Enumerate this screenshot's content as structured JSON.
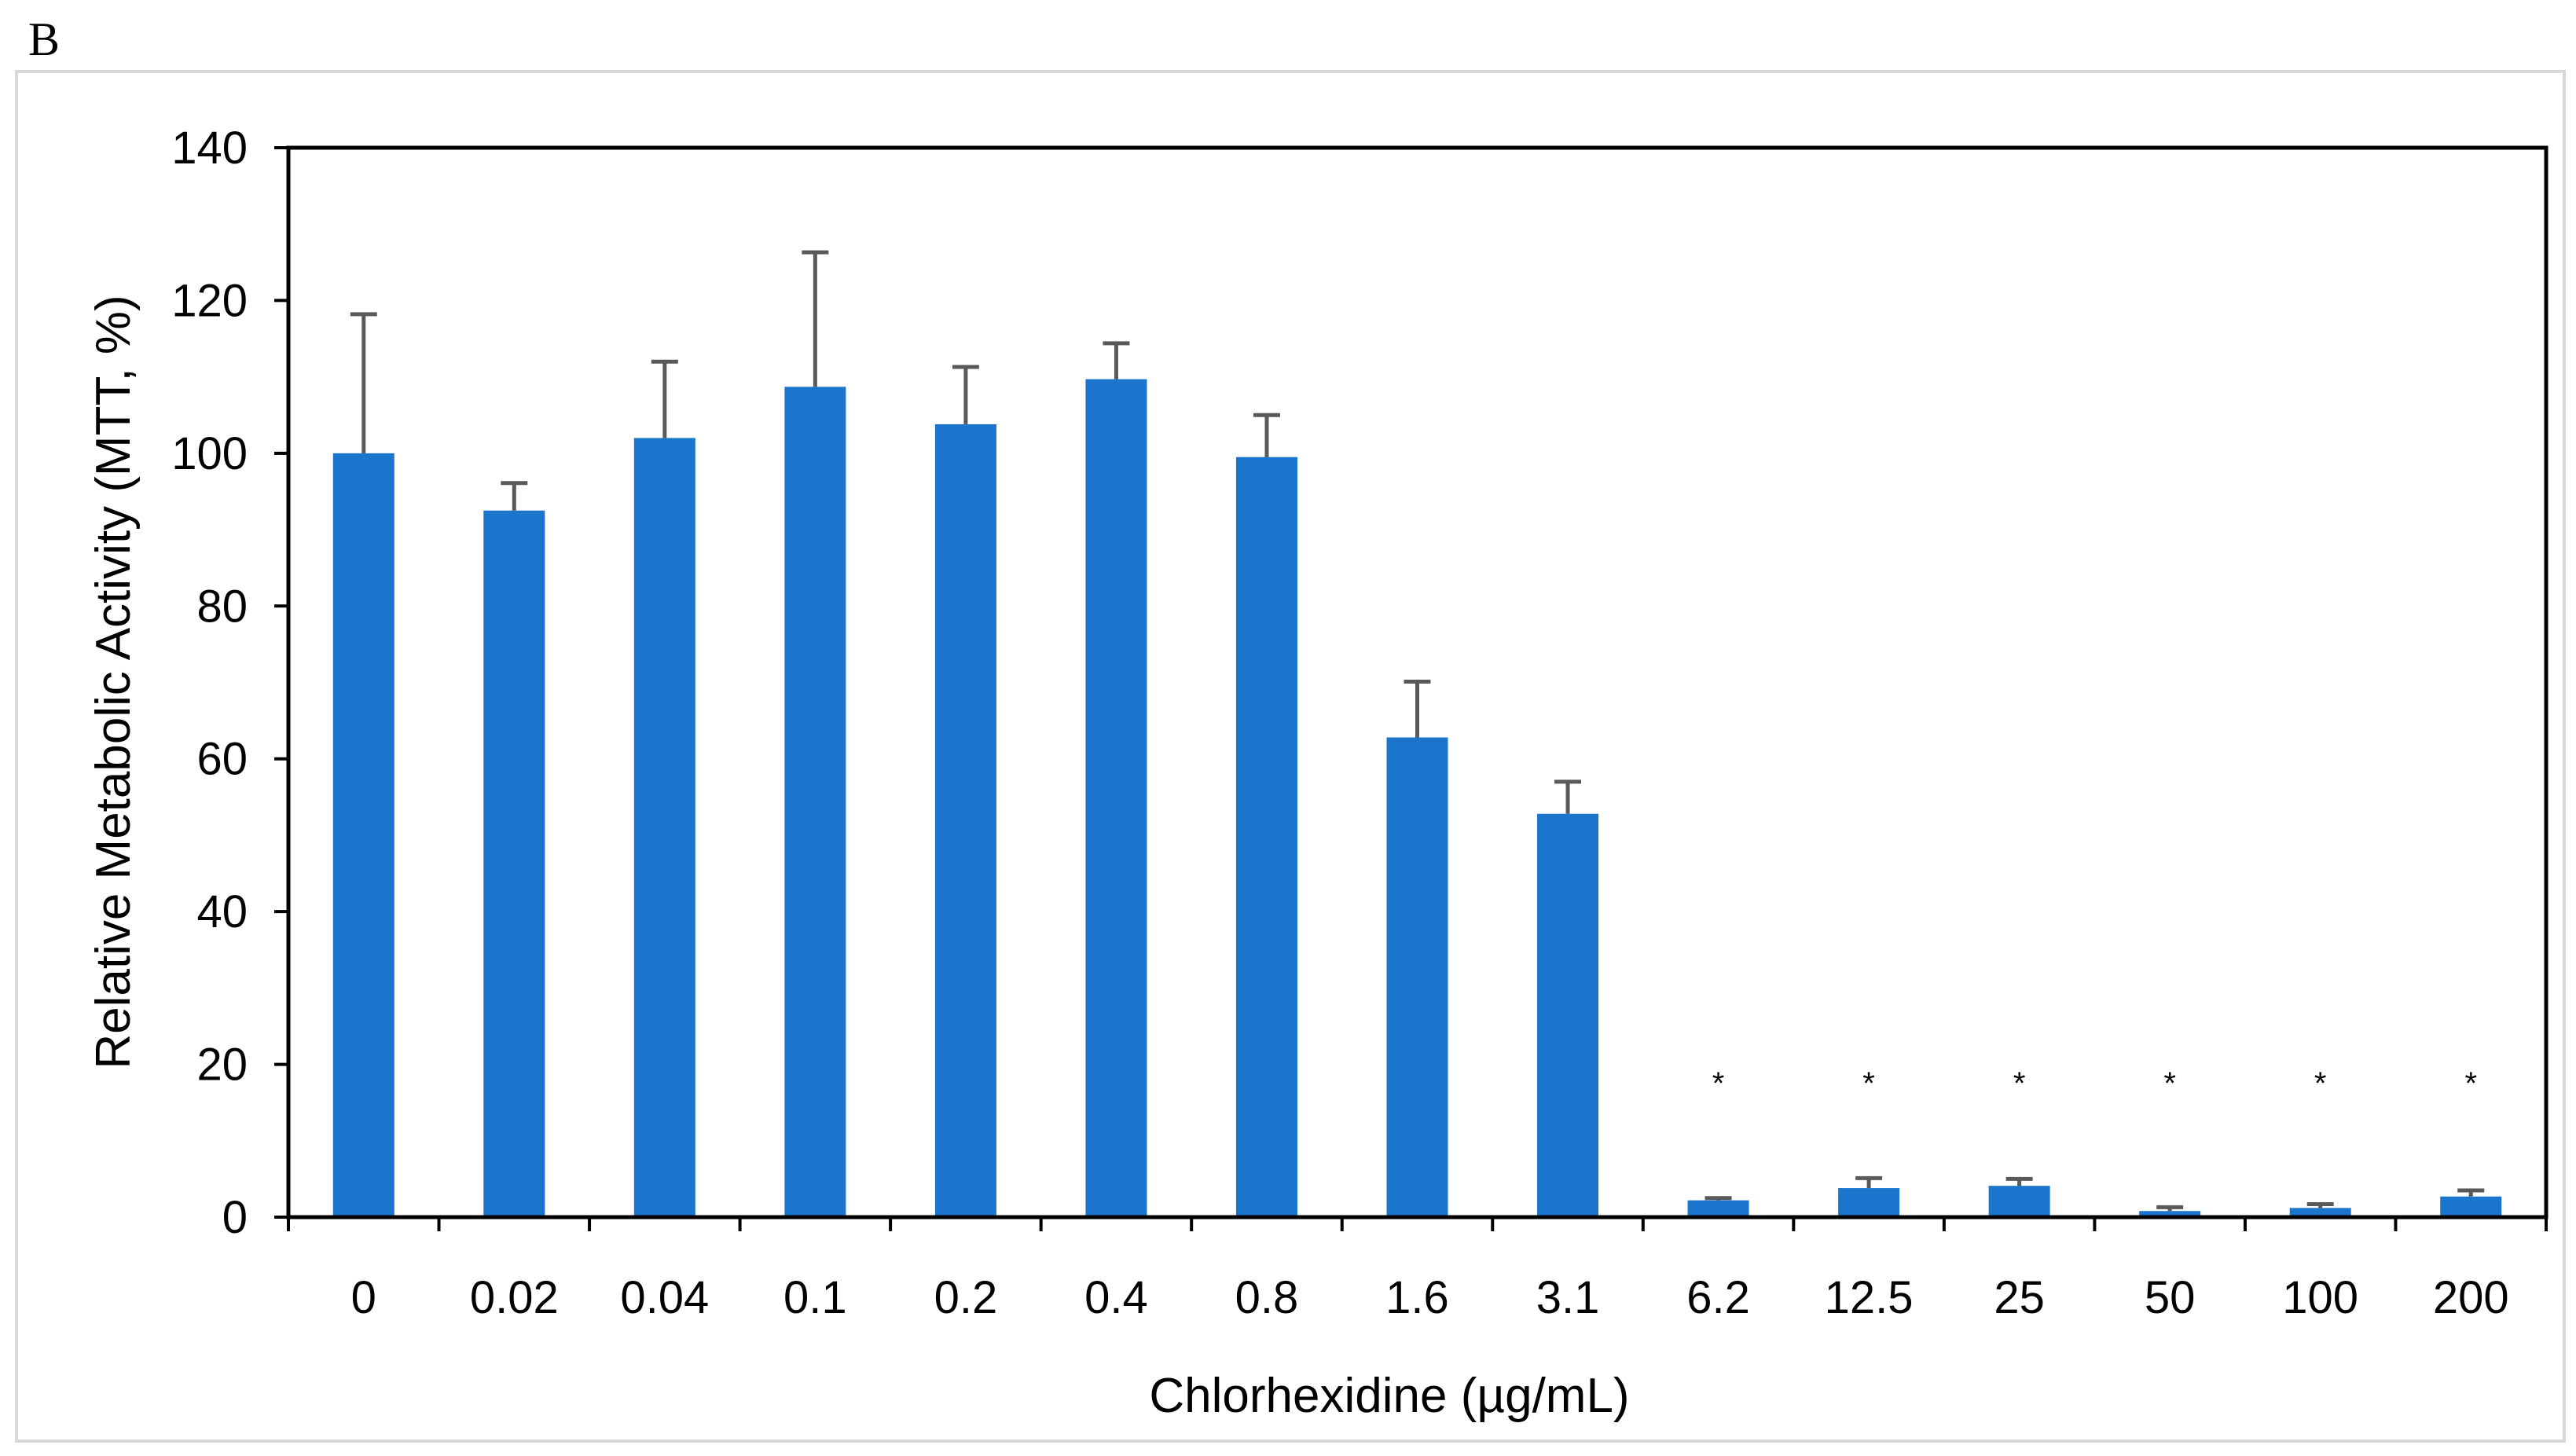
{
  "panel_label": "B",
  "chart_data": {
    "type": "bar",
    "title": "",
    "xlabel": "Chlorhexidine (µg/mL)",
    "ylabel": "Relative Metabolic Activity (MTT, %)",
    "ylim": [
      0,
      140
    ],
    "yticks": [
      0,
      20,
      40,
      60,
      80,
      100,
      120,
      140
    ],
    "ytick_labels": [
      "0",
      "20",
      "40",
      "60",
      "80",
      "100",
      "120",
      "140"
    ],
    "categories": [
      "0",
      "0.02",
      "0.04",
      "0.1",
      "0.2",
      "0.4",
      "0.8",
      "1.6",
      "3.1",
      "6.2",
      "12.5",
      "25",
      "50",
      "100",
      "200"
    ],
    "values": [
      100,
      92.5,
      102,
      108.7,
      103.8,
      109.7,
      99.5,
      62.8,
      52.8,
      2.2,
      3.8,
      4.1,
      0.8,
      1.2,
      2.7
    ],
    "error_upper": [
      118.2,
      96.1,
      112.0,
      126.3,
      111.3,
      114.4,
      105.0,
      70.1,
      57.0,
      2.5,
      5.1,
      5.0,
      1.3,
      1.7,
      3.5
    ],
    "significance": [
      "",
      "",
      "",
      "",
      "",
      "",
      "",
      "",
      "",
      "*",
      "*",
      "*",
      "*",
      "*",
      "*"
    ],
    "grid": false,
    "legend": "none",
    "colors": {
      "bar": "#1b75cc",
      "error_bar": "#595959",
      "axis": "#000000",
      "frame": "#d9d9d9"
    }
  }
}
